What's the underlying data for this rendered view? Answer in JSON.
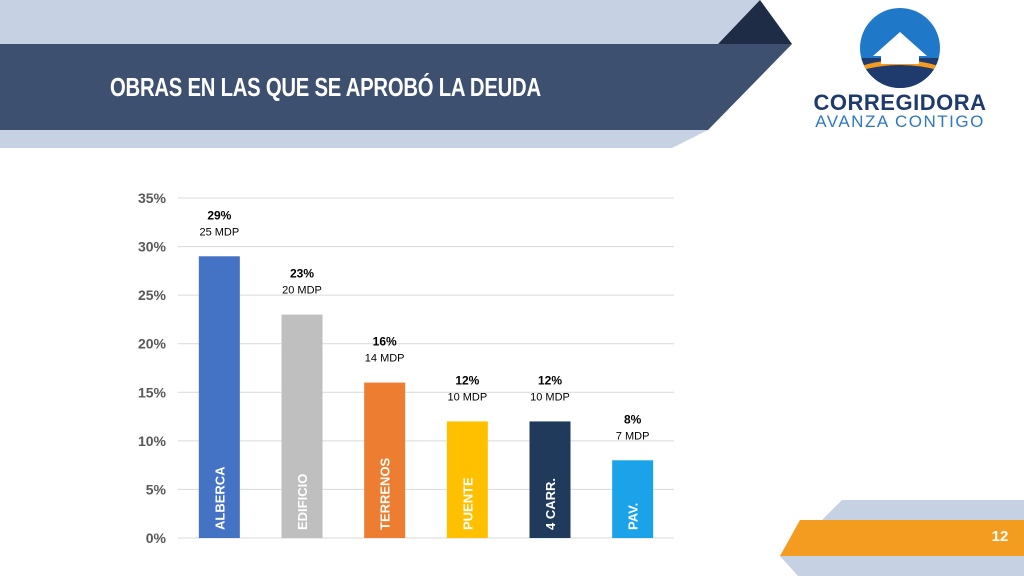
{
  "header": {
    "title": "OBRAS EN LAS QUE SE APROBÓ LA DEUDA"
  },
  "logo": {
    "line1": "CORREGIDORA",
    "line2": "AVANZA CONTIGO"
  },
  "footer": {
    "page_number": "12"
  },
  "colors": {
    "header_bar": "#3e5070",
    "header_light": "#c6d1e3",
    "header_dark": "#1f2c45",
    "accent_orange": "#f39c1f",
    "logo_navy": "#1f3b6e",
    "logo_blue": "#2f78c4"
  },
  "chart_data": {
    "type": "bar",
    "categories": [
      "ALBERCA",
      "EDIFICIO",
      "TERRENOS",
      "PUENTE",
      "4 CARR.",
      "PAV."
    ],
    "values": [
      29,
      23,
      16,
      12,
      12,
      8
    ],
    "value_labels": [
      "29%",
      "23%",
      "16%",
      "12%",
      "12%",
      "8%"
    ],
    "amount_labels": [
      "25 MDP",
      "20 MDP",
      "14 MDP",
      "10 MDP",
      "10 MDP",
      "7 MDP"
    ],
    "bar_colors": [
      "#4472c4",
      "#bfbfbf",
      "#ed7d31",
      "#ffc000",
      "#1f3a5a",
      "#1aa3e8"
    ],
    "ylim": [
      0,
      35
    ],
    "yticks": [
      0,
      5,
      10,
      15,
      20,
      25,
      30,
      35
    ],
    "ytick_labels": [
      "0%",
      "5%",
      "10%",
      "15%",
      "20%",
      "25%",
      "30%",
      "35%"
    ],
    "grid": true,
    "legend": "none",
    "title": "",
    "xlabel": "",
    "ylabel": ""
  }
}
